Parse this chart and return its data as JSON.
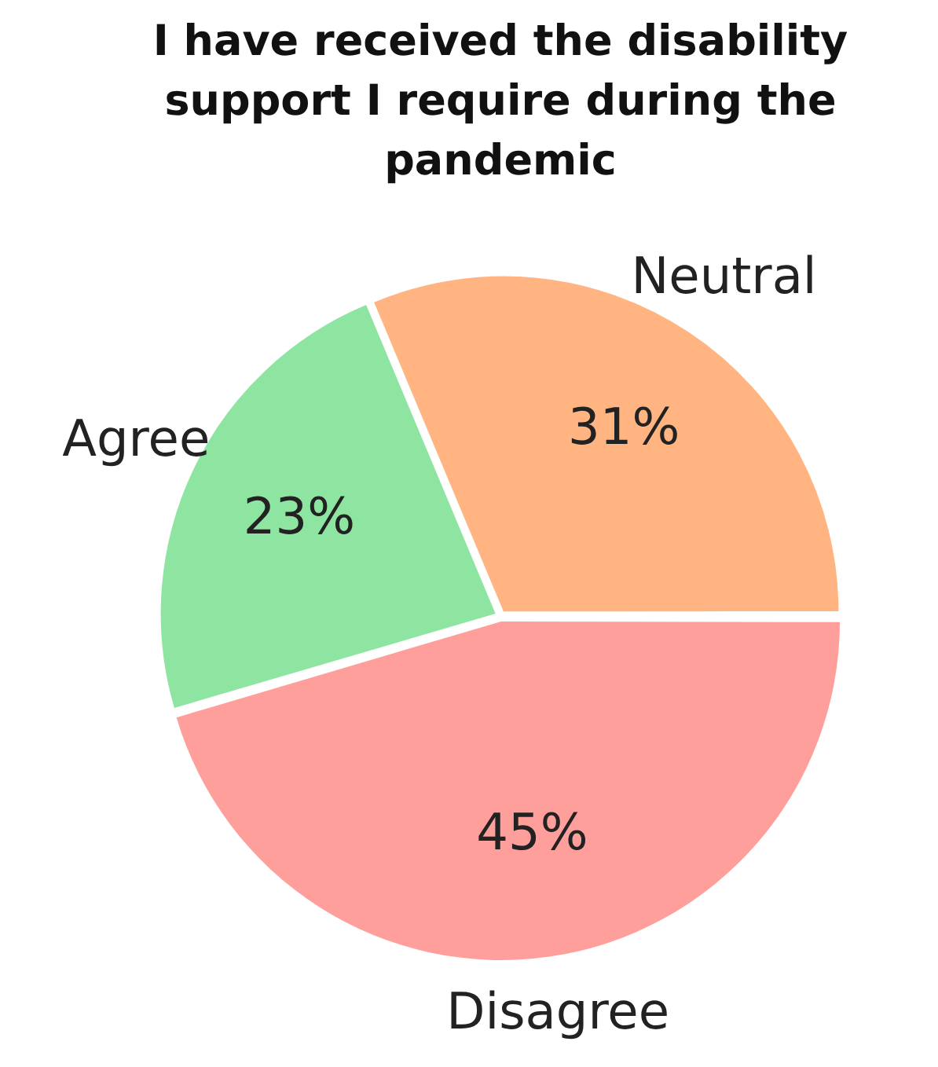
{
  "chart_data": {
    "type": "pie",
    "title": "I have received the disability support I require during the pandemic",
    "categories": [
      "Neutral",
      "Disagree",
      "Agree"
    ],
    "values": [
      31,
      45,
      23
    ],
    "colors": [
      "#ffb482",
      "#ff9f9b",
      "#8de5a1"
    ],
    "value_labels": [
      "31%",
      "45%",
      "23%"
    ],
    "legend": false
  }
}
